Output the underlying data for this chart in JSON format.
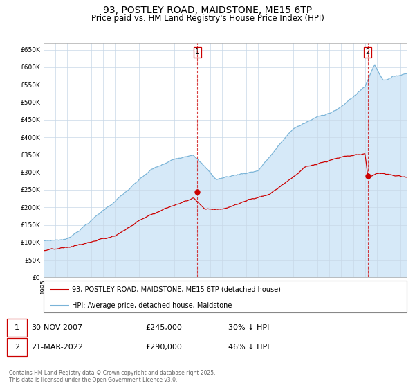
{
  "title": "93, POSTLEY ROAD, MAIDSTONE, ME15 6TP",
  "subtitle": "Price paid vs. HM Land Registry's House Price Index (HPI)",
  "title_fontsize": 10,
  "subtitle_fontsize": 8.5,
  "ylim": [
    0,
    670000
  ],
  "yticks": [
    0,
    50000,
    100000,
    150000,
    200000,
    250000,
    300000,
    350000,
    400000,
    450000,
    500000,
    550000,
    600000,
    650000
  ],
  "ytick_labels": [
    "£0",
    "£50K",
    "£100K",
    "£150K",
    "£200K",
    "£250K",
    "£300K",
    "£350K",
    "£400K",
    "£450K",
    "£500K",
    "£550K",
    "£600K",
    "£650K"
  ],
  "hpi_color": "#7ab4d8",
  "property_color": "#cc0000",
  "fill_color": "#d6e9f8",
  "grid_color": "#c8d8e8",
  "background_color": "#ffffff",
  "marker1_date_x": 2007.92,
  "marker1_price_y": 245000,
  "marker2_date_x": 2022.22,
  "marker2_price_y": 290000,
  "vline1_x": 2007.92,
  "vline2_x": 2022.22,
  "legend_property": "93, POSTLEY ROAD, MAIDSTONE, ME15 6TP (detached house)",
  "legend_hpi": "HPI: Average price, detached house, Maidstone",
  "table_row1": [
    "1",
    "30-NOV-2007",
    "£245,000",
    "30% ↓ HPI"
  ],
  "table_row2": [
    "2",
    "21-MAR-2022",
    "£290,000",
    "46% ↓ HPI"
  ],
  "footer": "Contains HM Land Registry data © Crown copyright and database right 2025.\nThis data is licensed under the Open Government Licence v3.0.",
  "xmin": 1995,
  "xmax": 2025.5
}
